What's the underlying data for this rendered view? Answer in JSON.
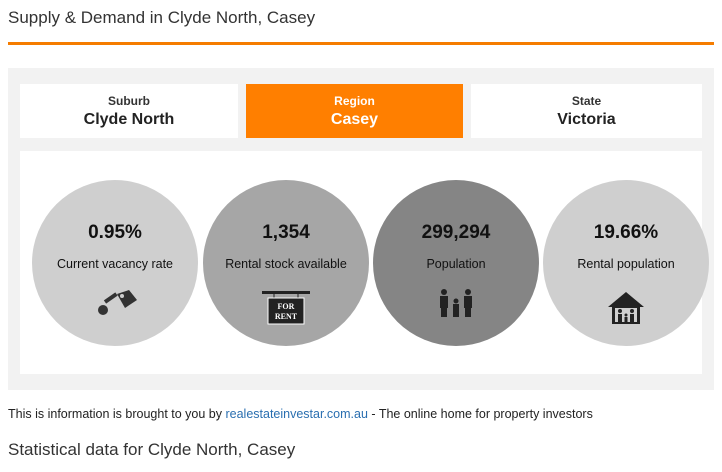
{
  "header": {
    "title": "Supply & Demand in Clyde North, Casey"
  },
  "tabs": [
    {
      "label": "Suburb",
      "value": "Clyde North"
    },
    {
      "label": "Region",
      "value": "Casey"
    },
    {
      "label": "State",
      "value": "Victoria"
    }
  ],
  "stats": [
    {
      "value": "0.95%",
      "label": "Current vacancy rate"
    },
    {
      "value": "1,354",
      "label": "Rental stock available",
      "icon_text": [
        "FOR",
        "RENT"
      ]
    },
    {
      "value": "299,294",
      "label": "Population"
    },
    {
      "value": "19.66%",
      "label": "Rental population"
    }
  ],
  "footer": {
    "prefix": "This is information is brought to you by",
    "link": "realestateinvestar.com.au",
    "suffix": "- The online home for property investors"
  },
  "section": {
    "title": "Statistical data for Clyde North, Casey"
  }
}
